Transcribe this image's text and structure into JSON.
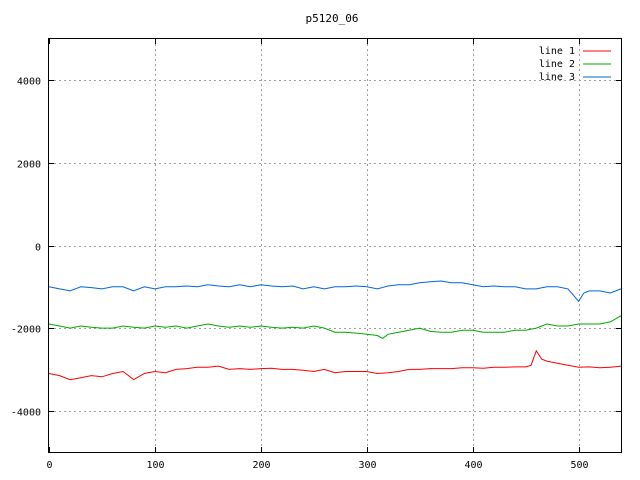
{
  "chart_data": {
    "type": "line",
    "title": "p5120_06",
    "xlim": [
      0,
      540
    ],
    "ylim": [
      -5000,
      5000
    ],
    "x_ticks": [
      0,
      100,
      200,
      300,
      400,
      500
    ],
    "y_ticks": [
      -4000,
      -2000,
      0,
      2000,
      4000
    ],
    "grid": true,
    "legend_position": "top-right",
    "series": [
      {
        "name": "line 1",
        "color": "#ff0000",
        "x": [
          0,
          10,
          20,
          30,
          40,
          50,
          60,
          70,
          80,
          90,
          100,
          110,
          120,
          130,
          140,
          150,
          160,
          170,
          180,
          190,
          200,
          210,
          220,
          230,
          240,
          250,
          260,
          270,
          280,
          290,
          300,
          310,
          320,
          330,
          340,
          350,
          360,
          370,
          380,
          390,
          400,
          410,
          420,
          430,
          440,
          450,
          455,
          460,
          465,
          470,
          480,
          490,
          500,
          510,
          520,
          530,
          540
        ],
        "y": [
          -3100,
          -3150,
          -3250,
          -3200,
          -3150,
          -3180,
          -3100,
          -3050,
          -3250,
          -3100,
          -3050,
          -3080,
          -3000,
          -2980,
          -2950,
          -2950,
          -2920,
          -3000,
          -2980,
          -3000,
          -2980,
          -2970,
          -3000,
          -3000,
          -3020,
          -3050,
          -3000,
          -3080,
          -3050,
          -3050,
          -3050,
          -3100,
          -3080,
          -3050,
          -3000,
          -3000,
          -2980,
          -2980,
          -2980,
          -2960,
          -2960,
          -2970,
          -2950,
          -2950,
          -2940,
          -2940,
          -2900,
          -2550,
          -2750,
          -2800,
          -2850,
          -2900,
          -2950,
          -2940,
          -2960,
          -2950,
          -2920
        ]
      },
      {
        "name": "line 2",
        "color": "#00aa00",
        "x": [
          0,
          10,
          20,
          30,
          40,
          50,
          60,
          70,
          80,
          90,
          100,
          110,
          120,
          130,
          140,
          150,
          160,
          170,
          180,
          190,
          200,
          210,
          220,
          230,
          240,
          250,
          260,
          270,
          280,
          290,
          300,
          310,
          315,
          320,
          330,
          340,
          350,
          360,
          370,
          380,
          390,
          400,
          410,
          420,
          430,
          440,
          450,
          460,
          470,
          480,
          490,
          500,
          510,
          520,
          530,
          540
        ],
        "y": [
          -1900,
          -1950,
          -2000,
          -1950,
          -1980,
          -2000,
          -2000,
          -1950,
          -1980,
          -2000,
          -1950,
          -1980,
          -1950,
          -2000,
          -1950,
          -1900,
          -1950,
          -1980,
          -1950,
          -1980,
          -1950,
          -1980,
          -2000,
          -1980,
          -2000,
          -1950,
          -2000,
          -2100,
          -2100,
          -2120,
          -2150,
          -2180,
          -2250,
          -2150,
          -2100,
          -2050,
          -2000,
          -2080,
          -2100,
          -2100,
          -2050,
          -2050,
          -2100,
          -2100,
          -2100,
          -2050,
          -2050,
          -2000,
          -1900,
          -1950,
          -1950,
          -1900,
          -1900,
          -1900,
          -1850,
          -1700
        ]
      },
      {
        "name": "line 3",
        "color": "#0066dd",
        "x": [
          0,
          10,
          20,
          30,
          40,
          50,
          60,
          70,
          80,
          90,
          100,
          110,
          120,
          130,
          140,
          150,
          160,
          170,
          180,
          190,
          200,
          210,
          220,
          230,
          240,
          250,
          260,
          270,
          280,
          290,
          300,
          310,
          320,
          330,
          340,
          350,
          360,
          370,
          380,
          390,
          400,
          410,
          420,
          430,
          440,
          450,
          460,
          470,
          480,
          490,
          495,
          500,
          505,
          510,
          520,
          530,
          540
        ],
        "y": [
          -1000,
          -1050,
          -1100,
          -1000,
          -1020,
          -1050,
          -1000,
          -1000,
          -1100,
          -1000,
          -1050,
          -1000,
          -1000,
          -980,
          -1000,
          -950,
          -980,
          -1000,
          -950,
          -1000,
          -950,
          -980,
          -1000,
          -980,
          -1050,
          -1000,
          -1050,
          -1000,
          -1000,
          -980,
          -1000,
          -1050,
          -980,
          -950,
          -950,
          -900,
          -880,
          -860,
          -900,
          -900,
          -950,
          -1000,
          -980,
          -1000,
          -1000,
          -1050,
          -1050,
          -1000,
          -1000,
          -1050,
          -1200,
          -1350,
          -1150,
          -1100,
          -1100,
          -1150,
          -1050
        ]
      }
    ]
  }
}
